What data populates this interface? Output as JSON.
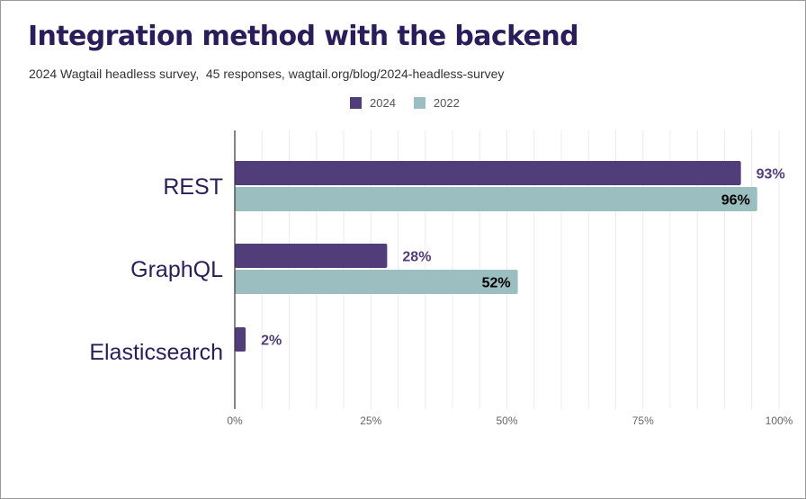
{
  "title": "Integration method with the backend",
  "subtitle": "2024 Wagtail headless survey,  45 responses, wagtail.org/blog/2024-headless-survey",
  "colors": {
    "s2024": "#523d7b",
    "s2022": "#9bbfc1",
    "label2024": "#523d7b",
    "label2022": "#000000",
    "title": "#2a1d5a"
  },
  "chart_data": {
    "type": "bar",
    "orientation": "horizontal",
    "categories": [
      "REST",
      "GraphQL",
      "Elasticsearch"
    ],
    "series": [
      {
        "name": "2024",
        "values": [
          93,
          28,
          2
        ],
        "labels": [
          "93%",
          "28%",
          "2%"
        ]
      },
      {
        "name": "2022",
        "values": [
          96,
          52,
          null
        ],
        "labels": [
          "96%",
          "52%",
          ""
        ]
      }
    ],
    "xlim": [
      0,
      100
    ],
    "xticks": [
      0,
      25,
      50,
      75,
      100
    ],
    "xtick_labels": [
      "0%",
      "25%",
      "50%",
      "75%",
      "100%"
    ],
    "legend": "top",
    "grid": true
  }
}
